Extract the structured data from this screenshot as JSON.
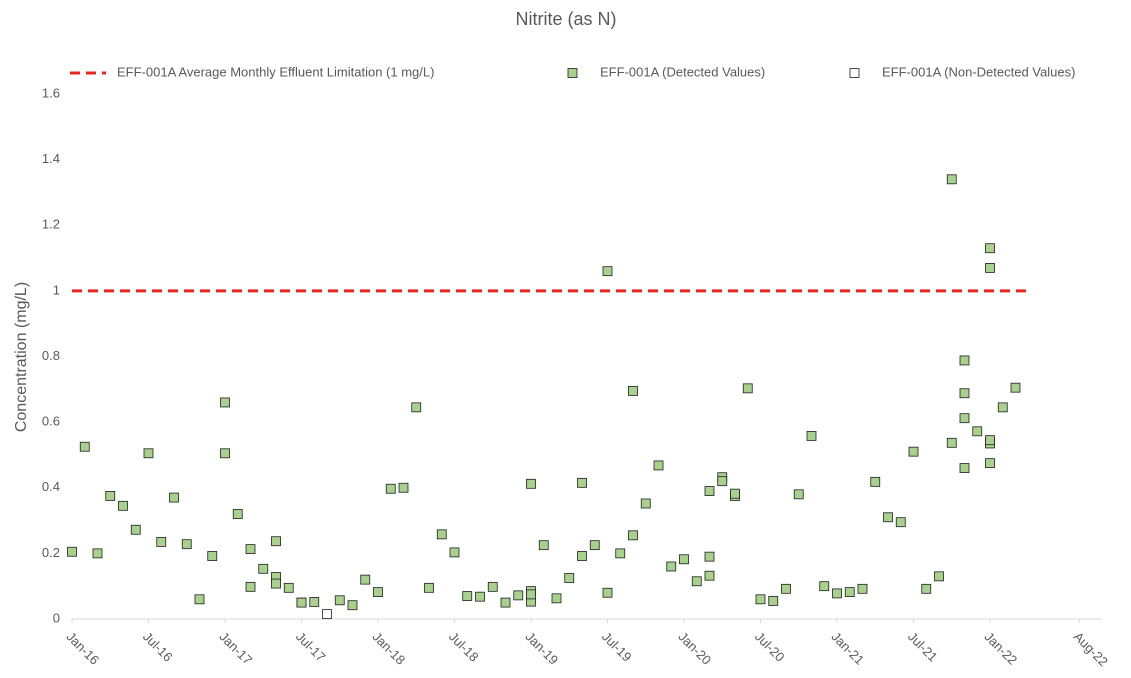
{
  "chart_data": {
    "type": "scatter",
    "title": "Nitrite (as N)",
    "y_label": "Concentration (mg/L)",
    "xlim": [
      "2016-01",
      "2022-09"
    ],
    "xticks": [
      {
        "value": "2016-01",
        "label": "Jan-16"
      },
      {
        "value": "2016-07",
        "label": "Jul-16"
      },
      {
        "value": "2017-01",
        "label": "Jan-17"
      },
      {
        "value": "2017-07",
        "label": "Jul-17"
      },
      {
        "value": "2018-01",
        "label": "Jan-18"
      },
      {
        "value": "2018-07",
        "label": "Jul-18"
      },
      {
        "value": "2019-01",
        "label": "Jan-19"
      },
      {
        "value": "2019-07",
        "label": "Jul-19"
      },
      {
        "value": "2020-01",
        "label": "Jan-20"
      },
      {
        "value": "2020-07",
        "label": "Jul-20"
      },
      {
        "value": "2021-01",
        "label": "Jan-21"
      },
      {
        "value": "2021-07",
        "label": "Jul-21"
      },
      {
        "value": "2022-01",
        "label": "Jan-22"
      },
      {
        "value": "2022-08",
        "label": "Aug-22"
      }
    ],
    "ylim": [
      0,
      1.6
    ],
    "yticks": [
      0,
      0.2,
      0.4,
      0.6,
      0.8,
      1,
      1.2,
      1.4,
      1.6
    ],
    "series": [
      {
        "name": "EFF-001A Average Monthly Effluent Limitation (1 mg/L)",
        "type": "line",
        "dashed": true,
        "color": "#e8261f",
        "x": [
          "2016-01",
          "2022-04"
        ],
        "values": [
          1,
          1
        ]
      },
      {
        "name": "EFF-001A (Detected Values)",
        "type": "scatter",
        "color": "#a9d18e",
        "x": [
          "2016-01",
          "2016-02",
          "2016-03",
          "2016-04",
          "2016-05",
          "2016-06",
          "2016-07",
          "2016-08",
          "2016-09",
          "2016-10",
          "2016-11",
          "2016-12",
          "2017-01",
          "2017-01",
          "2017-02",
          "2017-03",
          "2017-03",
          "2017-04",
          "2017-05",
          "2017-05",
          "2017-05",
          "2017-06",
          "2017-07",
          "2017-07",
          "2017-08",
          "2017-10",
          "2017-11",
          "2017-12",
          "2018-01",
          "2018-02",
          "2018-03",
          "2018-04",
          "2018-05",
          "2018-06",
          "2018-07",
          "2018-08",
          "2018-09",
          "2018-10",
          "2018-11",
          "2018-12",
          "2019-01",
          "2019-01",
          "2019-01",
          "2019-01",
          "2019-02",
          "2019-03",
          "2019-04",
          "2019-05",
          "2019-05",
          "2019-06",
          "2019-07",
          "2019-07",
          "2019-08",
          "2019-09",
          "2019-09",
          "2019-10",
          "2019-11",
          "2019-12",
          "2020-01",
          "2020-02",
          "2020-03",
          "2020-03",
          "2020-03",
          "2020-04",
          "2020-04",
          "2020-05",
          "2020-05",
          "2020-06",
          "2020-07",
          "2020-08",
          "2020-09",
          "2020-10",
          "2020-11",
          "2020-12",
          "2021-01",
          "2021-02",
          "2021-03",
          "2021-04",
          "2021-05",
          "2021-06",
          "2021-07",
          "2021-08",
          "2021-09",
          "2021-10",
          "2021-10",
          "2021-11",
          "2021-11",
          "2021-11",
          "2021-11",
          "2021-12",
          "2022-01",
          "2022-01",
          "2022-01",
          "2022-01",
          "2022-01",
          "2022-02",
          "2022-03"
        ],
        "values": [
          0.205,
          0.525,
          0.2,
          0.375,
          0.345,
          0.272,
          0.505,
          0.235,
          0.37,
          0.228,
          0.06,
          0.192,
          0.66,
          0.505,
          0.32,
          0.213,
          0.098,
          0.153,
          0.128,
          0.237,
          0.108,
          0.095,
          0.05,
          0.05,
          0.052,
          0.057,
          0.042,
          0.12,
          0.082,
          0.397,
          0.4,
          0.645,
          0.095,
          0.258,
          0.203,
          0.07,
          0.068,
          0.098,
          0.05,
          0.072,
          0.053,
          0.085,
          0.075,
          0.412,
          0.225,
          0.063,
          0.125,
          0.415,
          0.192,
          0.225,
          0.08,
          1.06,
          0.2,
          0.255,
          0.695,
          0.352,
          0.468,
          0.16,
          0.182,
          0.115,
          0.132,
          0.39,
          0.19,
          0.432,
          0.42,
          0.375,
          0.382,
          0.703,
          0.06,
          0.055,
          0.092,
          0.38,
          0.558,
          0.1,
          0.078,
          0.082,
          0.092,
          0.418,
          0.31,
          0.295,
          0.51,
          0.092,
          0.13,
          0.537,
          1.34,
          0.46,
          0.612,
          0.788,
          0.688,
          0.572,
          0.535,
          0.545,
          1.13,
          1.07,
          0.475,
          0.645,
          0.705
        ]
      },
      {
        "name": "EFF-001A (Non-Detected Values)",
        "type": "scatter",
        "color": "#ffffff",
        "x": [
          "2017-09"
        ],
        "values": [
          0.015
        ]
      }
    ]
  }
}
